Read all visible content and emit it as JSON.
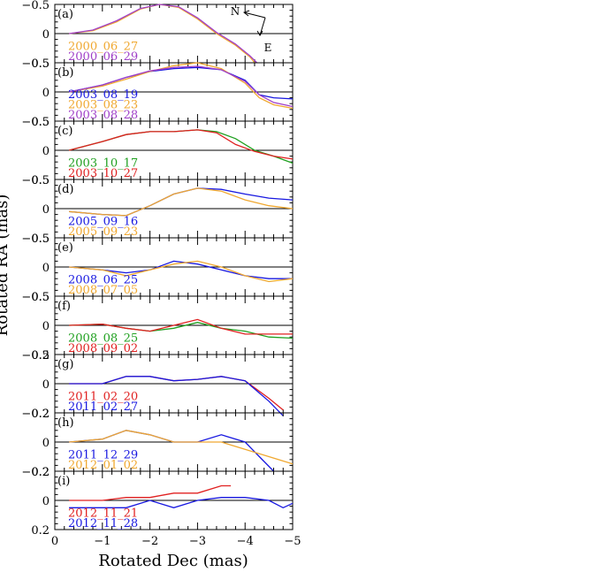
{
  "figure": {
    "xlabel": "Rotated Dec  (mas)",
    "ylabel": "Rotated RA  (mas)",
    "compass": {
      "north": "N",
      "east": "E"
    },
    "x_ticks": [
      {
        "v": 0,
        "label": "0"
      },
      {
        "v": -1,
        "label": "−1"
      },
      {
        "v": -2,
        "label": "−2"
      },
      {
        "v": -3,
        "label": "−3"
      },
      {
        "v": -4,
        "label": "−4"
      },
      {
        "v": -5,
        "label": "−5"
      }
    ]
  },
  "colors": {
    "orange": "#f0a830",
    "purple": "#a040c8",
    "blue": "#1818e0",
    "green": "#20a020",
    "red": "#e02020"
  },
  "chart_data": [
    {
      "type": "line",
      "panel": "(a)",
      "xlim": [
        0,
        -5
      ],
      "ylim": [
        0.5,
        -0.5
      ],
      "yticks": [
        {
          "v": -0.5,
          "label": "−0.5"
        },
        {
          "v": 0,
          "label": "0"
        },
        {
          "v": 0.5,
          "label": "0.5"
        }
      ],
      "series": [
        {
          "name": "2000_06_27",
          "color": "orange",
          "points": [
            [
              -0.3,
              0.0
            ],
            [
              -0.8,
              -0.05
            ],
            [
              -1.3,
              -0.2
            ],
            [
              -1.8,
              -0.42
            ],
            [
              -2.2,
              -0.5
            ],
            [
              -2.6,
              -0.45
            ],
            [
              -3.0,
              -0.25
            ],
            [
              -3.4,
              0.0
            ],
            [
              -3.8,
              0.2
            ],
            [
              -4.1,
              0.4
            ],
            [
              -4.2,
              0.5
            ]
          ]
        },
        {
          "name": "2000_06_29",
          "color": "purple",
          "points": [
            [
              -0.3,
              0.0
            ],
            [
              -0.8,
              -0.06
            ],
            [
              -1.3,
              -0.22
            ],
            [
              -1.8,
              -0.43
            ],
            [
              -2.2,
              -0.5
            ],
            [
              -2.6,
              -0.46
            ],
            [
              -3.0,
              -0.27
            ],
            [
              -3.4,
              -0.02
            ],
            [
              -3.8,
              0.18
            ],
            [
              -4.1,
              0.38
            ],
            [
              -4.25,
              0.5
            ]
          ]
        }
      ]
    },
    {
      "type": "line",
      "panel": "(b)",
      "xlim": [
        0,
        -5
      ],
      "ylim": [
        0.5,
        -0.5
      ],
      "yticks": [
        {
          "v": -0.5,
          "label": "−0.5"
        },
        {
          "v": 0,
          "label": "0"
        },
        {
          "v": 0.5,
          "label": "0.5"
        }
      ],
      "series": [
        {
          "name": "2003_08_19",
          "color": "blue",
          "points": [
            [
              -0.3,
              0.0
            ],
            [
              -1.0,
              -0.12
            ],
            [
              -1.5,
              -0.25
            ],
            [
              -2.0,
              -0.35
            ],
            [
              -2.5,
              -0.4
            ],
            [
              -3.0,
              -0.42
            ],
            [
              -3.5,
              -0.38
            ],
            [
              -4.0,
              -0.2
            ],
            [
              -4.3,
              0.05
            ],
            [
              -4.6,
              0.1
            ],
            [
              -5.0,
              0.12
            ]
          ]
        },
        {
          "name": "2003_08_23",
          "color": "orange",
          "points": [
            [
              -0.3,
              0.0
            ],
            [
              -1.0,
              -0.1
            ],
            [
              -1.5,
              -0.22
            ],
            [
              -2.0,
              -0.35
            ],
            [
              -2.5,
              -0.45
            ],
            [
              -3.0,
              -0.5
            ],
            [
              -3.5,
              -0.4
            ],
            [
              -4.0,
              -0.15
            ],
            [
              -4.3,
              0.1
            ],
            [
              -4.6,
              0.22
            ],
            [
              -5.0,
              0.28
            ]
          ]
        },
        {
          "name": "2003_08_28",
          "color": "purple",
          "points": [
            [
              -0.3,
              0.0
            ],
            [
              -1.0,
              -0.12
            ],
            [
              -1.5,
              -0.25
            ],
            [
              -2.0,
              -0.36
            ],
            [
              -2.5,
              -0.42
            ],
            [
              -3.0,
              -0.44
            ],
            [
              -3.5,
              -0.38
            ],
            [
              -4.0,
              -0.18
            ],
            [
              -4.3,
              0.05
            ],
            [
              -4.6,
              0.18
            ],
            [
              -5.0,
              0.25
            ]
          ]
        }
      ]
    },
    {
      "type": "line",
      "panel": "(c)",
      "xlim": [
        0,
        -5
      ],
      "ylim": [
        0.5,
        -0.5
      ],
      "yticks": [
        {
          "v": -0.5,
          "label": "−0.5"
        },
        {
          "v": 0,
          "label": "0"
        },
        {
          "v": 0.5,
          "label": "0.5"
        }
      ],
      "series": [
        {
          "name": "2003_10_17",
          "color": "green",
          "points": [
            [
              -0.3,
              0.0
            ],
            [
              -1.0,
              -0.15
            ],
            [
              -1.5,
              -0.27
            ],
            [
              -2.0,
              -0.32
            ],
            [
              -2.5,
              -0.32
            ],
            [
              -3.0,
              -0.35
            ],
            [
              -3.4,
              -0.32
            ],
            [
              -3.8,
              -0.2
            ],
            [
              -4.2,
              0.0
            ],
            [
              -4.6,
              0.1
            ],
            [
              -5.0,
              0.22
            ]
          ]
        },
        {
          "name": "2003_10_27",
          "color": "red",
          "points": [
            [
              -0.3,
              0.0
            ],
            [
              -1.0,
              -0.15
            ],
            [
              -1.5,
              -0.27
            ],
            [
              -2.0,
              -0.32
            ],
            [
              -2.5,
              -0.32
            ],
            [
              -3.0,
              -0.35
            ],
            [
              -3.4,
              -0.3
            ],
            [
              -3.8,
              -0.1
            ],
            [
              -4.2,
              0.02
            ],
            [
              -4.6,
              0.1
            ],
            [
              -5.0,
              0.15
            ]
          ]
        }
      ]
    },
    {
      "type": "line",
      "panel": "(d)",
      "xlim": [
        0,
        -5
      ],
      "ylim": [
        0.5,
        -0.5
      ],
      "yticks": [
        {
          "v": -0.5,
          "label": "−0.5"
        },
        {
          "v": 0,
          "label": "0"
        },
        {
          "v": 0.5,
          "label": "0.5"
        }
      ],
      "series": [
        {
          "name": "2005_09_16",
          "color": "blue",
          "points": [
            [
              -0.3,
              0.05
            ],
            [
              -1.0,
              0.1
            ],
            [
              -1.5,
              0.12
            ],
            [
              -2.0,
              -0.05
            ],
            [
              -2.5,
              -0.25
            ],
            [
              -3.0,
              -0.35
            ],
            [
              -3.5,
              -0.33
            ],
            [
              -4.0,
              -0.25
            ],
            [
              -4.5,
              -0.18
            ],
            [
              -5.0,
              -0.15
            ]
          ]
        },
        {
          "name": "2005_09_23",
          "color": "orange",
          "points": [
            [
              -0.3,
              0.05
            ],
            [
              -1.0,
              0.1
            ],
            [
              -1.5,
              0.12
            ],
            [
              -2.0,
              -0.05
            ],
            [
              -2.5,
              -0.25
            ],
            [
              -3.0,
              -0.35
            ],
            [
              -3.5,
              -0.3
            ],
            [
              -4.0,
              -0.15
            ],
            [
              -4.5,
              -0.05
            ],
            [
              -5.0,
              0.0
            ]
          ]
        }
      ]
    },
    {
      "type": "line",
      "panel": "(e)",
      "xlim": [
        0,
        -5
      ],
      "ylim": [
        0.5,
        -0.5
      ],
      "yticks": [
        {
          "v": -0.5,
          "label": "−0.5"
        },
        {
          "v": 0,
          "label": "0"
        },
        {
          "v": 0.5,
          "label": "0.5"
        }
      ],
      "series": [
        {
          "name": "2008_06_25",
          "color": "blue",
          "points": [
            [
              -0.3,
              0.0
            ],
            [
              -1.0,
              0.05
            ],
            [
              -1.5,
              0.1
            ],
            [
              -2.0,
              0.05
            ],
            [
              -2.5,
              -0.1
            ],
            [
              -3.0,
              -0.05
            ],
            [
              -3.5,
              0.05
            ],
            [
              -4.0,
              0.15
            ],
            [
              -4.5,
              0.2
            ],
            [
              -5.0,
              0.2
            ]
          ]
        },
        {
          "name": "2008_07_05",
          "color": "orange",
          "points": [
            [
              -0.3,
              0.0
            ],
            [
              -1.0,
              0.05
            ],
            [
              -1.5,
              0.15
            ],
            [
              -2.0,
              0.05
            ],
            [
              -2.5,
              -0.05
            ],
            [
              -3.0,
              -0.1
            ],
            [
              -3.5,
              0.0
            ],
            [
              -4.0,
              0.15
            ],
            [
              -4.5,
              0.25
            ],
            [
              -5.0,
              0.2
            ]
          ]
        }
      ]
    },
    {
      "type": "line",
      "panel": "(f)",
      "xlim": [
        0,
        -5
      ],
      "ylim": [
        0.5,
        -0.5
      ],
      "yticks": [
        {
          "v": -0.5,
          "label": "−0.5"
        },
        {
          "v": 0,
          "label": "0"
        },
        {
          "v": 0.5,
          "label": "0.5"
        }
      ],
      "series": [
        {
          "name": "2008_08_25",
          "color": "green",
          "points": [
            [
              -0.3,
              0.0
            ],
            [
              -1.0,
              -0.02
            ],
            [
              -1.5,
              0.05
            ],
            [
              -2.0,
              0.1
            ],
            [
              -2.5,
              0.05
            ],
            [
              -3.0,
              -0.05
            ],
            [
              -3.5,
              0.05
            ],
            [
              -4.0,
              0.1
            ],
            [
              -4.5,
              0.2
            ],
            [
              -5.0,
              0.22
            ]
          ]
        },
        {
          "name": "2008_09_02",
          "color": "red",
          "points": [
            [
              -0.3,
              0.0
            ],
            [
              -1.0,
              -0.02
            ],
            [
              -1.5,
              0.05
            ],
            [
              -2.0,
              0.1
            ],
            [
              -2.5,
              0.0
            ],
            [
              -3.0,
              -0.1
            ],
            [
              -3.5,
              0.05
            ],
            [
              -4.0,
              0.15
            ],
            [
              -4.5,
              0.15
            ],
            [
              -5.0,
              0.15
            ]
          ]
        }
      ]
    },
    {
      "type": "line",
      "panel": "(g)",
      "xlim": [
        0,
        -5
      ],
      "ylim": [
        0.2,
        -0.2
      ],
      "yticks": [
        {
          "v": -0.2,
          "label": "−0.2"
        },
        {
          "v": 0,
          "label": "0"
        },
        {
          "v": 0.2,
          "label": "0.2"
        }
      ],
      "series": [
        {
          "name": "2011_02_20",
          "color": "red",
          "points": [
            [
              -0.3,
              0.0
            ],
            [
              -1.0,
              0.0
            ],
            [
              -1.5,
              -0.05
            ],
            [
              -2.0,
              -0.05
            ],
            [
              -2.5,
              -0.02
            ],
            [
              -3.0,
              -0.03
            ],
            [
              -3.5,
              -0.05
            ],
            [
              -4.0,
              -0.02
            ],
            [
              -4.5,
              0.1
            ],
            [
              -4.8,
              0.18
            ]
          ]
        },
        {
          "name": "2011_02_27",
          "color": "blue",
          "points": [
            [
              -0.3,
              0.0
            ],
            [
              -1.0,
              0.0
            ],
            [
              -1.5,
              -0.05
            ],
            [
              -2.0,
              -0.05
            ],
            [
              -2.5,
              -0.02
            ],
            [
              -3.0,
              -0.03
            ],
            [
              -3.5,
              -0.05
            ],
            [
              -4.0,
              -0.02
            ],
            [
              -4.5,
              0.12
            ],
            [
              -4.8,
              0.22
            ]
          ]
        }
      ]
    },
    {
      "type": "line",
      "panel": "(h)",
      "xlim": [
        0,
        -5
      ],
      "ylim": [
        0.2,
        -0.2
      ],
      "yticks": [
        {
          "v": -0.2,
          "label": "−0.2"
        },
        {
          "v": 0,
          "label": "0"
        },
        {
          "v": 0.2,
          "label": "0.2"
        }
      ],
      "series": [
        {
          "name": "2011_12_29",
          "color": "blue",
          "points": [
            [
              -0.3,
              0.0
            ],
            [
              -1.0,
              -0.02
            ],
            [
              -1.5,
              -0.08
            ],
            [
              -2.0,
              -0.05
            ],
            [
              -2.5,
              0.0
            ],
            [
              -3.0,
              0.0
            ],
            [
              -3.5,
              -0.05
            ],
            [
              -4.0,
              0.0
            ],
            [
              -4.3,
              0.1
            ],
            [
              -4.6,
              0.2
            ]
          ]
        },
        {
          "name": "2012_01_02",
          "color": "orange",
          "points": [
            [
              -0.3,
              0.0
            ],
            [
              -1.0,
              -0.02
            ],
            [
              -1.5,
              -0.08
            ],
            [
              -2.0,
              -0.05
            ],
            [
              -2.5,
              0.0
            ],
            [
              -3.0,
              0.0
            ],
            [
              -3.5,
              0.0
            ],
            [
              -4.0,
              0.05
            ],
            [
              -4.5,
              0.1
            ],
            [
              -5.0,
              0.15
            ]
          ]
        }
      ]
    },
    {
      "type": "line",
      "panel": "(i)",
      "xlim": [
        0,
        -5
      ],
      "ylim": [
        0.2,
        -0.2
      ],
      "yticks": [
        {
          "v": -0.2,
          "label": "−0.2"
        },
        {
          "v": 0,
          "label": "0"
        },
        {
          "v": 0.2,
          "label": "0.2"
        }
      ],
      "series": [
        {
          "name": "2012_11_21",
          "color": "red",
          "points": [
            [
              -0.3,
              0.0
            ],
            [
              -1.0,
              0.0
            ],
            [
              -1.5,
              -0.02
            ],
            [
              -2.0,
              -0.02
            ],
            [
              -2.5,
              -0.05
            ],
            [
              -3.0,
              -0.05
            ],
            [
              -3.5,
              -0.1
            ],
            [
              -3.7,
              -0.1
            ]
          ]
        },
        {
          "name": "2012_11_28",
          "color": "blue",
          "points": [
            [
              -0.3,
              0.05
            ],
            [
              -1.0,
              0.05
            ],
            [
              -1.5,
              0.05
            ],
            [
              -2.0,
              0.0
            ],
            [
              -2.5,
              0.05
            ],
            [
              -3.0,
              0.0
            ],
            [
              -3.5,
              -0.02
            ],
            [
              -4.0,
              -0.02
            ],
            [
              -4.5,
              0.0
            ],
            [
              -4.8,
              0.05
            ],
            [
              -5.0,
              0.02
            ]
          ]
        }
      ]
    }
  ]
}
